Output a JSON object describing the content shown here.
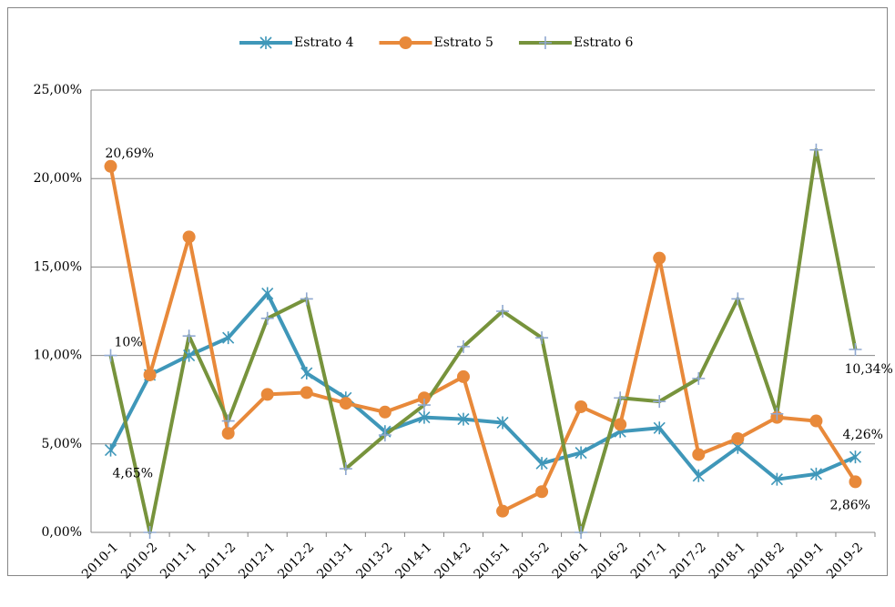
{
  "chart_data": {
    "type": "line",
    "categories": [
      "2010-1",
      "2010-2",
      "2011-1",
      "2011-2",
      "2012-1",
      "2012-2",
      "2013-1",
      "2013-2",
      "2014-1",
      "2014-2",
      "2015-1",
      "2015-2",
      "2016-1",
      "2016-2",
      "2017-1",
      "2017-2",
      "2018-1",
      "2018-2",
      "2019-1",
      "2019-2"
    ],
    "series": [
      {
        "name": "Estrato 4",
        "color": "#3f97b9",
        "marker": "star",
        "values": [
          4.65,
          8.9,
          10.0,
          11.0,
          13.5,
          9.0,
          7.6,
          5.7,
          6.5,
          6.4,
          6.2,
          3.9,
          4.5,
          5.7,
          5.9,
          3.2,
          4.8,
          3.0,
          3.3,
          4.26
        ],
        "value_labels": [
          "4,65%",
          null,
          null,
          null,
          null,
          null,
          null,
          null,
          null,
          null,
          null,
          null,
          null,
          null,
          null,
          null,
          null,
          null,
          null,
          "4,26%"
        ]
      },
      {
        "name": "Estrato 5",
        "color": "#e8893a",
        "marker": "circle",
        "values": [
          20.69,
          8.9,
          16.7,
          5.6,
          7.8,
          7.9,
          7.3,
          6.8,
          7.6,
          8.8,
          1.2,
          2.3,
          7.1,
          6.1,
          15.5,
          4.4,
          5.3,
          6.5,
          6.3,
          2.86
        ],
        "value_labels": [
          "20,69%",
          null,
          null,
          null,
          null,
          null,
          null,
          null,
          null,
          null,
          null,
          null,
          null,
          null,
          null,
          null,
          null,
          null,
          null,
          "2,86%"
        ]
      },
      {
        "name": "Estrato 6",
        "color": "#77933c",
        "marker": "plus",
        "values": [
          10,
          0,
          11.1,
          6.3,
          12.1,
          13.2,
          3.6,
          5.5,
          7.2,
          10.5,
          12.5,
          11.0,
          0,
          7.6,
          7.4,
          8.7,
          13.2,
          6.7,
          21.62,
          10.34
        ],
        "value_labels": [
          "10%",
          null,
          null,
          null,
          null,
          null,
          null,
          null,
          null,
          null,
          null,
          null,
          null,
          null,
          null,
          null,
          null,
          null,
          null,
          "10,34%"
        ]
      }
    ],
    "ylim": [
      0,
      25
    ],
    "yticks": [
      {
        "value": 0,
        "label": "0,00%"
      },
      {
        "value": 5,
        "label": "5,00%"
      },
      {
        "value": 10,
        "label": "10,00%"
      },
      {
        "value": 15,
        "label": "15,00%"
      },
      {
        "value": 20,
        "label": "20,00%"
      },
      {
        "value": 25,
        "label": "25,00%"
      }
    ],
    "grid": true,
    "legend": "top"
  }
}
